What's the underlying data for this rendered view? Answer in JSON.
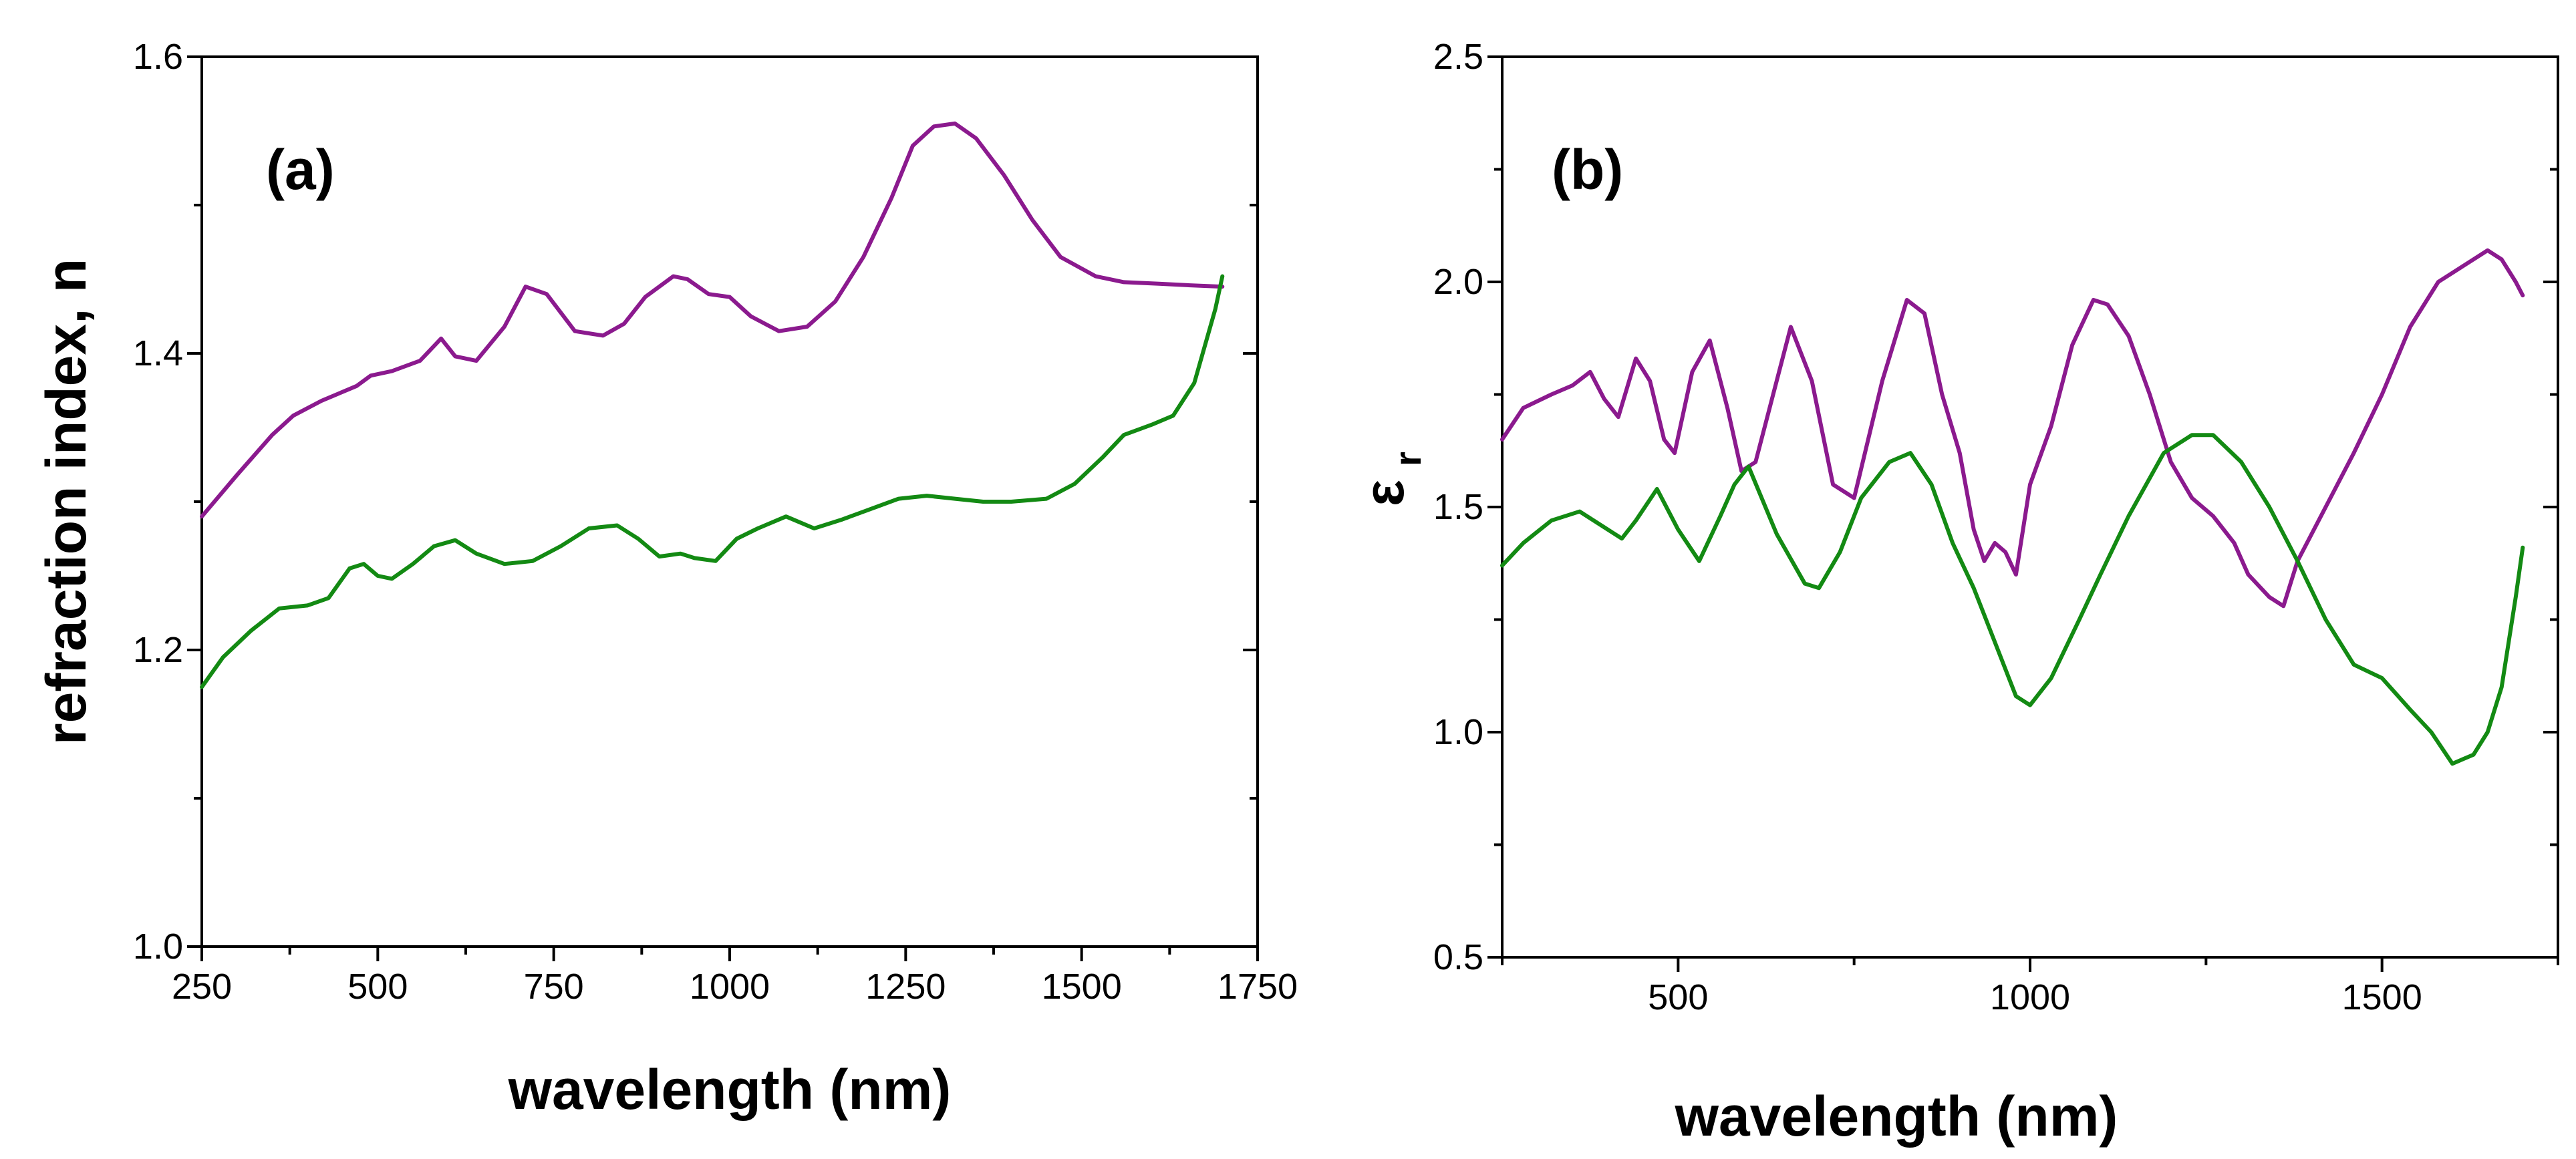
{
  "chart_data": [
    {
      "type": "line",
      "panel_label": "(a)",
      "title": "",
      "xlabel": "wavelength (nm)",
      "ylabel": "refraction index, n",
      "xlim": [
        250,
        1750
      ],
      "ylim": [
        1.0,
        1.6
      ],
      "x_ticks": [
        250,
        500,
        750,
        1000,
        1250,
        1500,
        1750
      ],
      "y_ticks": [
        1.0,
        1.2,
        1.4,
        1.6
      ],
      "x_tick_labels": [
        "250",
        "500",
        "750",
        "1000",
        "1250",
        "1500",
        "1750"
      ],
      "y_tick_labels": [
        "1.0",
        "1.2",
        "1.4",
        "1.6"
      ],
      "colors": [
        "#8B1A8E",
        "#138A13"
      ],
      "series": [
        {
          "name": "purple",
          "x": [
            250,
            300,
            350,
            380,
            420,
            470,
            490,
            520,
            560,
            590,
            610,
            640,
            680,
            710,
            740,
            780,
            820,
            850,
            880,
            920,
            940,
            970,
            1000,
            1030,
            1070,
            1110,
            1150,
            1190,
            1230,
            1260,
            1290,
            1320,
            1350,
            1390,
            1430,
            1470,
            1520,
            1560,
            1610,
            1650,
            1700
          ],
          "values": [
            1.29,
            1.318,
            1.345,
            1.358,
            1.368,
            1.378,
            1.385,
            1.388,
            1.395,
            1.41,
            1.398,
            1.395,
            1.418,
            1.445,
            1.44,
            1.415,
            1.412,
            1.42,
            1.438,
            1.452,
            1.45,
            1.44,
            1.438,
            1.425,
            1.415,
            1.418,
            1.435,
            1.465,
            1.505,
            1.54,
            1.553,
            1.555,
            1.545,
            1.52,
            1.49,
            1.465,
            1.452,
            1.448,
            1.447,
            1.446,
            1.445
          ]
        },
        {
          "name": "green",
          "x": [
            250,
            280,
            320,
            360,
            400,
            430,
            460,
            480,
            500,
            520,
            550,
            580,
            610,
            640,
            680,
            720,
            760,
            800,
            840,
            870,
            900,
            930,
            950,
            980,
            1010,
            1040,
            1080,
            1120,
            1160,
            1200,
            1240,
            1280,
            1320,
            1360,
            1400,
            1450,
            1490,
            1530,
            1560,
            1600,
            1630,
            1660,
            1690,
            1700
          ],
          "values": [
            1.175,
            1.195,
            1.213,
            1.228,
            1.23,
            1.235,
            1.255,
            1.258,
            1.25,
            1.248,
            1.258,
            1.27,
            1.274,
            1.265,
            1.258,
            1.26,
            1.27,
            1.282,
            1.284,
            1.275,
            1.263,
            1.265,
            1.262,
            1.26,
            1.275,
            1.282,
            1.29,
            1.282,
            1.288,
            1.295,
            1.302,
            1.304,
            1.302,
            1.3,
            1.3,
            1.302,
            1.312,
            1.33,
            1.345,
            1.352,
            1.358,
            1.38,
            1.43,
            1.452
          ]
        }
      ]
    },
    {
      "type": "line",
      "panel_label": "(b)",
      "title": "",
      "xlabel": "wavelength (nm)",
      "ylabel": "εr",
      "ylabel_main": "ε",
      "ylabel_sub": "r",
      "xlim": [
        250,
        1750
      ],
      "ylim": [
        0.5,
        2.5
      ],
      "x_ticks": [
        500,
        1000,
        1500
      ],
      "y_ticks": [
        0.5,
        1.0,
        1.5,
        2.0,
        2.5
      ],
      "x_tick_labels": [
        "500",
        "1000",
        "1500"
      ],
      "y_tick_labels": [
        "0.5",
        "1.0",
        "1.5",
        "2.0",
        "2.5"
      ],
      "colors": [
        "#8B1A8E",
        "#138A13"
      ],
      "series": [
        {
          "name": "purple",
          "x": [
            250,
            280,
            320,
            350,
            375,
            395,
            415,
            440,
            460,
            480,
            495,
            520,
            545,
            570,
            590,
            610,
            640,
            660,
            690,
            720,
            750,
            790,
            825,
            850,
            875,
            900,
            920,
            935,
            950,
            965,
            980,
            1000,
            1030,
            1060,
            1090,
            1110,
            1140,
            1170,
            1200,
            1230,
            1260,
            1290,
            1310,
            1340,
            1360,
            1380,
            1420,
            1460,
            1500,
            1540,
            1580,
            1620,
            1650,
            1670,
            1690,
            1700
          ],
          "values": [
            1.65,
            1.72,
            1.75,
            1.77,
            1.8,
            1.74,
            1.7,
            1.83,
            1.78,
            1.65,
            1.62,
            1.8,
            1.87,
            1.72,
            1.58,
            1.6,
            1.78,
            1.9,
            1.78,
            1.55,
            1.52,
            1.78,
            1.96,
            1.93,
            1.75,
            1.62,
            1.45,
            1.38,
            1.42,
            1.4,
            1.35,
            1.55,
            1.68,
            1.86,
            1.96,
            1.95,
            1.88,
            1.75,
            1.6,
            1.52,
            1.48,
            1.42,
            1.35,
            1.3,
            1.28,
            1.38,
            1.5,
            1.62,
            1.75,
            1.9,
            2.0,
            2.04,
            2.07,
            2.05,
            2.0,
            1.97
          ]
        },
        {
          "name": "green",
          "x": [
            250,
            280,
            320,
            360,
            400,
            420,
            440,
            470,
            500,
            530,
            560,
            580,
            600,
            640,
            680,
            700,
            730,
            760,
            800,
            830,
            860,
            890,
            920,
            950,
            980,
            1000,
            1030,
            1070,
            1100,
            1140,
            1190,
            1230,
            1260,
            1300,
            1340,
            1380,
            1420,
            1460,
            1500,
            1540,
            1570,
            1600,
            1630,
            1650,
            1670,
            1690,
            1700
          ],
          "values": [
            1.37,
            1.42,
            1.47,
            1.49,
            1.45,
            1.43,
            1.47,
            1.54,
            1.45,
            1.38,
            1.48,
            1.55,
            1.59,
            1.44,
            1.33,
            1.32,
            1.4,
            1.52,
            1.6,
            1.62,
            1.55,
            1.42,
            1.32,
            1.2,
            1.08,
            1.06,
            1.12,
            1.25,
            1.35,
            1.48,
            1.62,
            1.66,
            1.66,
            1.6,
            1.5,
            1.38,
            1.25,
            1.15,
            1.12,
            1.05,
            1.0,
            0.93,
            0.95,
            1.0,
            1.1,
            1.3,
            1.41
          ]
        }
      ]
    }
  ]
}
